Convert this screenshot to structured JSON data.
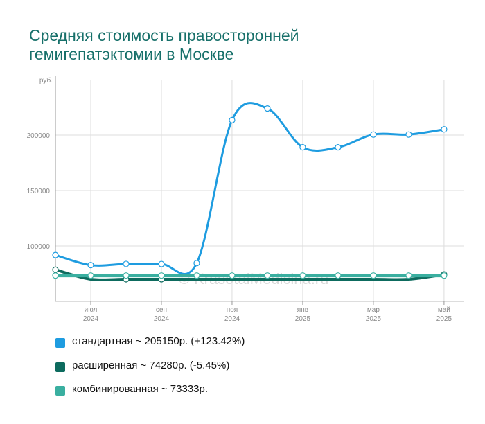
{
  "title_lines": [
    "Средняя стоимость правосторонней",
    "гемигепатэктомии в Москве"
  ],
  "watermark": "© KrasotaiMedicina.ru",
  "chart_data": {
    "type": "line",
    "title": "Средняя стоимость правосторонней гемигепатэктомии в Москве",
    "y_unit_label": "руб.",
    "ylim": [
      50000,
      250000
    ],
    "yticks": [
      100000,
      150000,
      200000
    ],
    "ytick_labels": [
      "100000",
      "150000",
      "200000"
    ],
    "xlim": [
      0,
      11.1
    ],
    "xticks": [
      {
        "x": 1,
        "label": [
          "июл",
          "2024"
        ]
      },
      {
        "x": 3,
        "label": [
          "сен",
          "2024"
        ]
      },
      {
        "x": 5,
        "label": [
          "ноя",
          "2024"
        ]
      },
      {
        "x": 7,
        "label": [
          "янв",
          "2025"
        ]
      },
      {
        "x": 9,
        "label": [
          "мар",
          "2025"
        ]
      },
      {
        "x": 11,
        "label": [
          "май",
          "2025"
        ]
      }
    ],
    "x": [
      0,
      1,
      2,
      3,
      4,
      5,
      6,
      7,
      8,
      9,
      10,
      11
    ],
    "grid": true,
    "legend_position": "bottom",
    "series": [
      {
        "name": "стандартная",
        "color": "#1e9ce0",
        "values": [
          91800,
          82700,
          83800,
          83700,
          84500,
          213500,
          224000,
          189000,
          189000,
          200500,
          200500,
          205150
        ],
        "markers": [
          true,
          true,
          true,
          true,
          true,
          true,
          true,
          true,
          true,
          true,
          true,
          true
        ],
        "legend": "стандартная ~ 205150р. (+123.42%)"
      },
      {
        "name": "расширенная",
        "color": "#0d6b5e",
        "values": [
          78600,
          70000,
          70000,
          70000,
          70000,
          70000,
          70000,
          70000,
          70000,
          70000,
          70000,
          74280
        ],
        "markers": [
          true,
          false,
          true,
          true,
          false,
          false,
          false,
          false,
          false,
          false,
          false,
          true
        ],
        "legend": "расширенная ~ 74280р. (-5.45%)"
      },
      {
        "name": "комбинированная",
        "color": "#3aafa0",
        "values": [
          73333,
          73333,
          73333,
          73333,
          73333,
          73333,
          73333,
          73333,
          73333,
          73333,
          73333,
          73333
        ],
        "markers": [
          true,
          true,
          true,
          true,
          true,
          true,
          true,
          true,
          true,
          true,
          true,
          true
        ],
        "legend": "комбинированная ~ 73333р."
      }
    ]
  }
}
